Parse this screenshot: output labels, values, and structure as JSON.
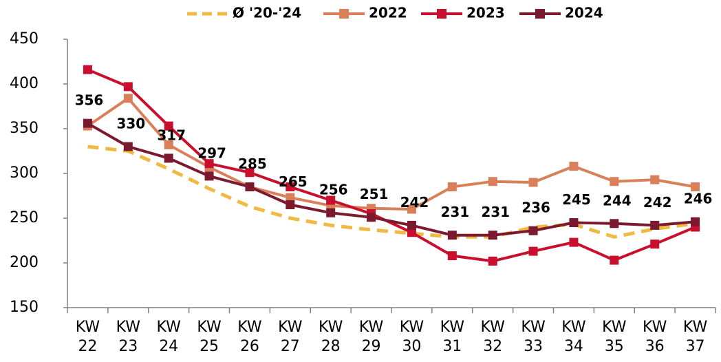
{
  "chart_data": {
    "type": "line",
    "categories": [
      "KW 22",
      "KW 23",
      "KW 24",
      "KW 25",
      "KW 26",
      "KW 27",
      "KW 28",
      "KW 29",
      "KW 30",
      "KW 31",
      "KW 32",
      "KW 33",
      "KW 34",
      "KW 35",
      "KW 36",
      "KW 37"
    ],
    "series": [
      {
        "name": "Ø '20-'24",
        "color": "#f0b942",
        "dashed": true,
        "markers": false,
        "values": [
          330,
          325,
          305,
          283,
          263,
          250,
          242,
          237,
          233,
          229,
          229,
          240,
          243,
          229,
          238,
          244
        ]
      },
      {
        "name": "2022",
        "color": "#d9805a",
        "dashed": false,
        "markers": true,
        "values": [
          353,
          384,
          332,
          307,
          285,
          273,
          264,
          261,
          260,
          285,
          291,
          290,
          308,
          291,
          293,
          285
        ]
      },
      {
        "name": "2023",
        "color": "#c8102e",
        "dashed": false,
        "markers": true,
        "values": [
          416,
          397,
          353,
          311,
          301,
          285,
          270,
          255,
          234,
          208,
          202,
          213,
          223,
          203,
          221,
          240
        ]
      },
      {
        "name": "2024",
        "color": "#7b1a2e",
        "dashed": false,
        "markers": true,
        "data_labels": true,
        "values": [
          356,
          330,
          317,
          297,
          285,
          265,
          256,
          251,
          242,
          231,
          231,
          236,
          245,
          244,
          242,
          246
        ]
      }
    ],
    "ylim": [
      150,
      450
    ],
    "yticks": [
      150,
      200,
      250,
      300,
      350,
      400,
      450
    ],
    "grid": false,
    "legend": "top"
  }
}
